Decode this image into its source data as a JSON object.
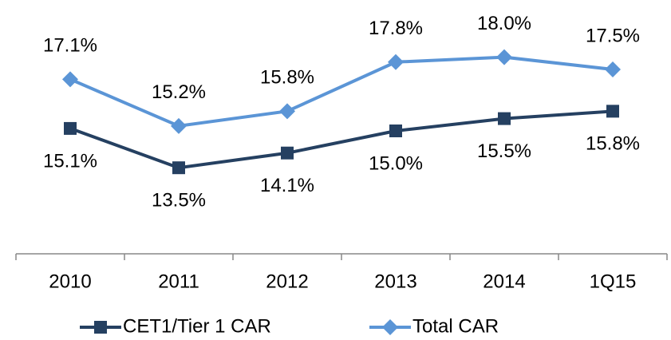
{
  "chart_data": {
    "type": "line",
    "categories": [
      "2010",
      "2011",
      "2012",
      "2013",
      "2014",
      "1Q15"
    ],
    "series": [
      {
        "name": "CET1/Tier 1 CAR",
        "color": "#254061",
        "marker": "square",
        "values": [
          15.1,
          13.5,
          14.1,
          15.0,
          15.5,
          15.8
        ],
        "value_labels": [
          "15.1%",
          "13.5%",
          "14.1%",
          "15.0%",
          "15.5%",
          "15.8%"
        ]
      },
      {
        "name": "Total CAR",
        "color": "#5b95d6",
        "marker": "diamond",
        "values": [
          17.1,
          15.2,
          15.8,
          17.8,
          18.0,
          17.5
        ],
        "value_labels": [
          "17.1%",
          "15.2%",
          "15.8%",
          "17.8%",
          "18.0%",
          "17.5%"
        ]
      }
    ],
    "ylim": [
      10,
      20
    ],
    "legend": "bottom"
  }
}
